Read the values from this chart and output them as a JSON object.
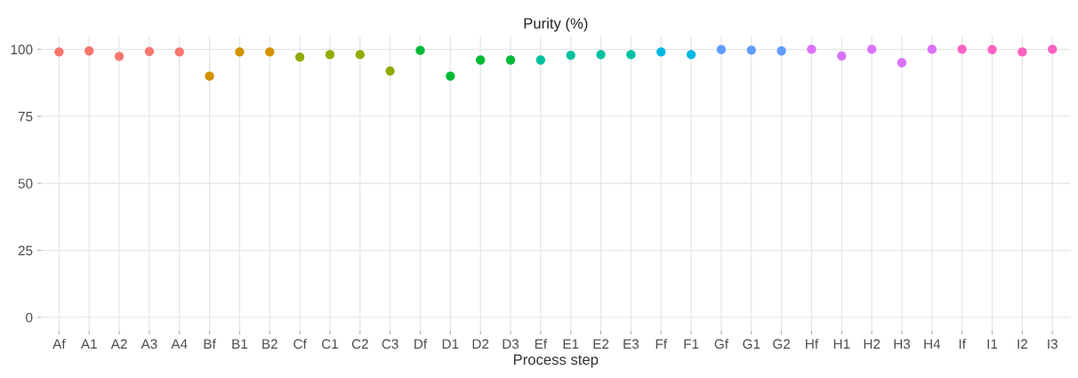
{
  "chart_data": {
    "type": "scatter",
    "title": "Purity (%)",
    "xlabel": "Process step",
    "categories": [
      "Af",
      "A1",
      "A2",
      "A3",
      "A4",
      "Bf",
      "B1",
      "B2",
      "Cf",
      "C1",
      "C2",
      "C3",
      "Df",
      "D1",
      "D2",
      "D3",
      "Ef",
      "E1",
      "E2",
      "E3",
      "Ff",
      "F1",
      "Gf",
      "G1",
      "G2",
      "Hf",
      "H1",
      "H2",
      "H3",
      "H4",
      "If",
      "I1",
      "I2",
      "I3"
    ],
    "values": [
      99.0,
      99.4,
      97.4,
      99.2,
      99.0,
      90.0,
      99.0,
      99.0,
      97.1,
      98.0,
      98.0,
      91.9,
      99.6,
      90.0,
      96.0,
      96.0,
      96.0,
      97.8,
      98.0,
      98.0,
      99.0,
      98.0,
      99.9,
      99.7,
      99.4,
      100.0,
      97.5,
      100.0,
      95.0,
      100.0,
      100.0,
      99.9,
      99.0,
      100.0
    ],
    "colors": [
      "#F8766D",
      "#F8766D",
      "#F8766D",
      "#F8766D",
      "#F8766D",
      "#D39200",
      "#D39200",
      "#D39200",
      "#93AA00",
      "#93AA00",
      "#93AA00",
      "#93AA00",
      "#00BA38",
      "#00BA38",
      "#00BA38",
      "#00BA38",
      "#00C19F",
      "#00C19F",
      "#00C19F",
      "#00C19F",
      "#00B9E3",
      "#00B9E3",
      "#619CFF",
      "#619CFF",
      "#619CFF",
      "#DB72FB",
      "#DB72FB",
      "#DB72FB",
      "#DB72FB",
      "#DB72FB",
      "#FF61C3",
      "#FF61C3",
      "#FF61C3",
      "#FF61C3"
    ],
    "ylim": [
      -5,
      105
    ],
    "yticks": [
      0,
      25,
      50,
      75,
      100
    ],
    "grid": true,
    "marker": "circle",
    "legend": false
  }
}
